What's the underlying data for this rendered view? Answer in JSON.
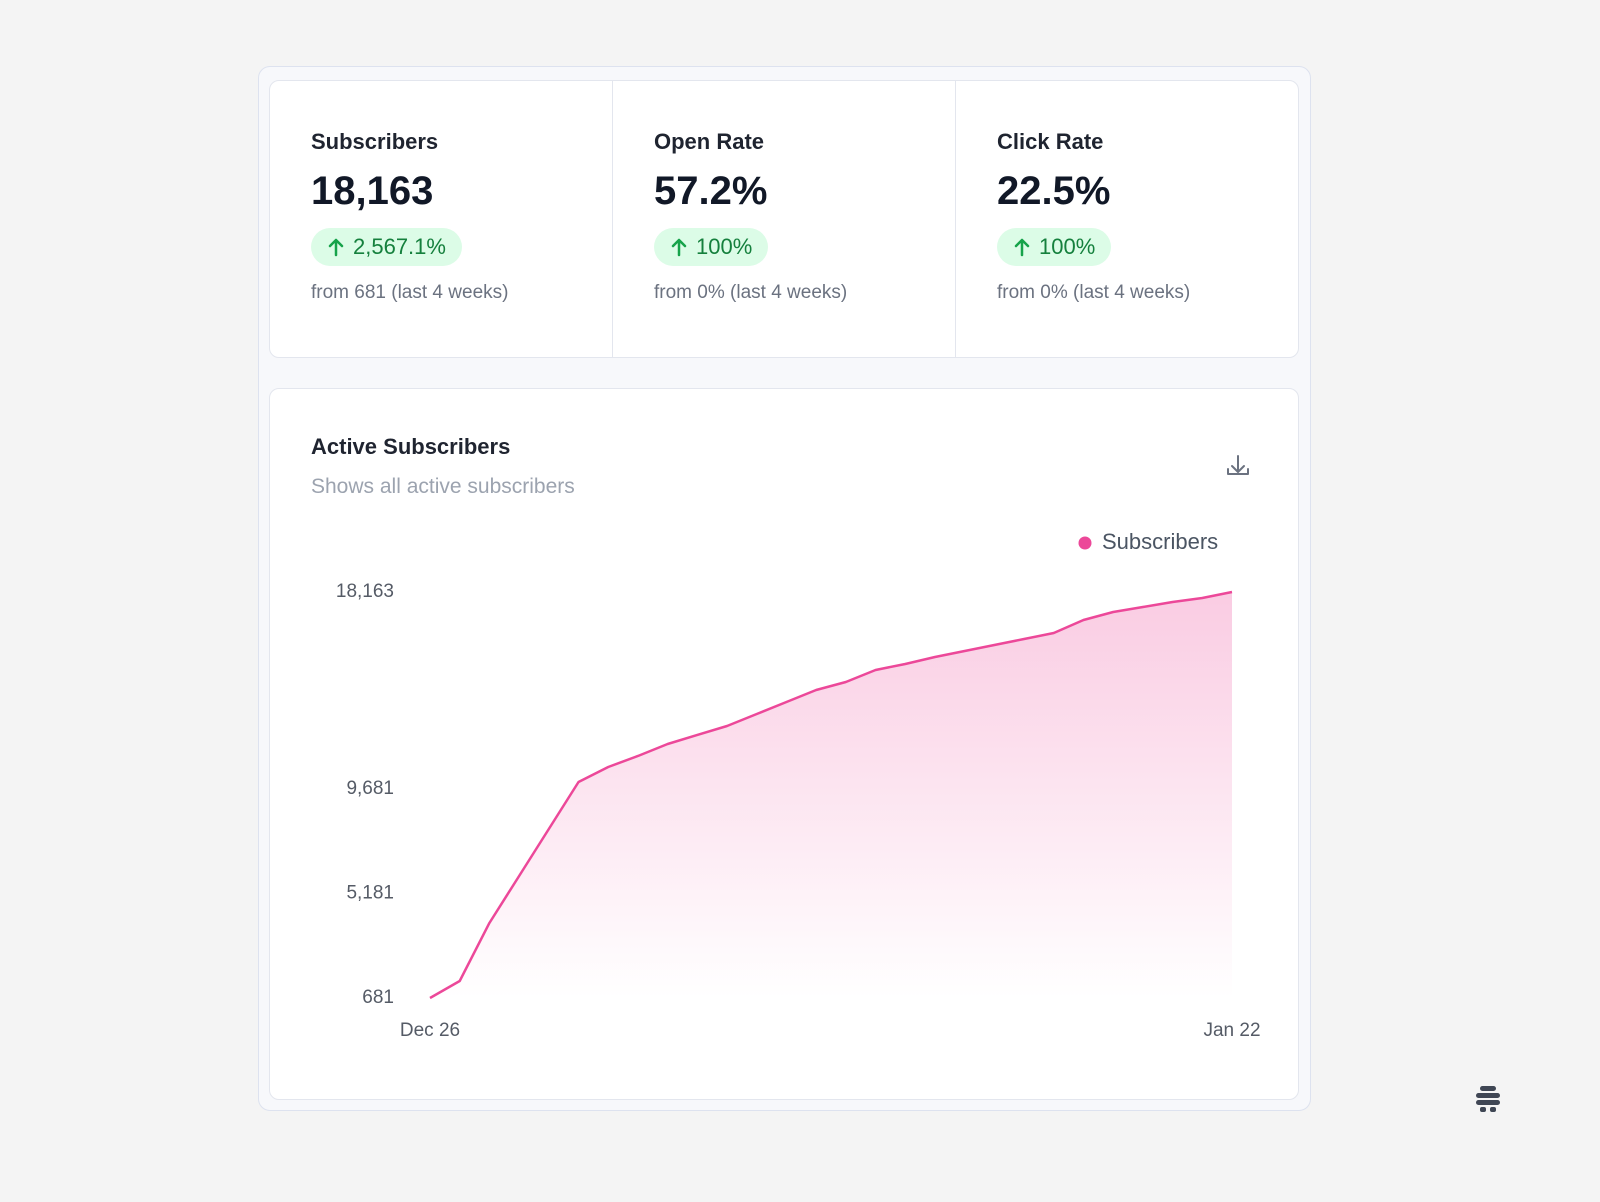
{
  "stats": [
    {
      "label": "Subscribers",
      "value": "18,163",
      "change": "2,567.1%",
      "note": "from 681 (last 4 weeks)"
    },
    {
      "label": "Open Rate",
      "value": "57.2%",
      "change": "100%",
      "note": "from 0% (last 4 weeks)"
    },
    {
      "label": "Click Rate",
      "value": "22.5%",
      "change": "100%",
      "note": "from 0% (last 4 weeks)"
    }
  ],
  "chart_data": {
    "type": "area",
    "title": "Active Subscribers",
    "subtitle": "Shows all active subscribers",
    "categories": [
      "Dec 26",
      null,
      null,
      null,
      null,
      null,
      null,
      null,
      null,
      null,
      null,
      null,
      null,
      null,
      null,
      null,
      null,
      null,
      null,
      null,
      null,
      null,
      null,
      null,
      null,
      null,
      null,
      "Jan 22"
    ],
    "series": [
      {
        "name": "Subscribers",
        "color": "#ec4899",
        "values": [
          681,
          1413,
          3911,
          5934,
          7958,
          9982,
          10628,
          11102,
          11618,
          12006,
          12393,
          12910,
          13427,
          13943,
          14288,
          14804,
          15063,
          15364,
          15622,
          15881,
          16139,
          16397,
          16957,
          17301,
          17517,
          17732,
          17904,
          18163
        ]
      }
    ],
    "ylim": [
      681,
      18163
    ],
    "yticks": [
      {
        "value": 681,
        "label": "681"
      },
      {
        "value": 5181,
        "label": "5,181"
      },
      {
        "value": 9681,
        "label": "9,681"
      },
      {
        "value": 18163,
        "label": "18,163"
      }
    ],
    "grid": false,
    "legend": "top-right"
  }
}
